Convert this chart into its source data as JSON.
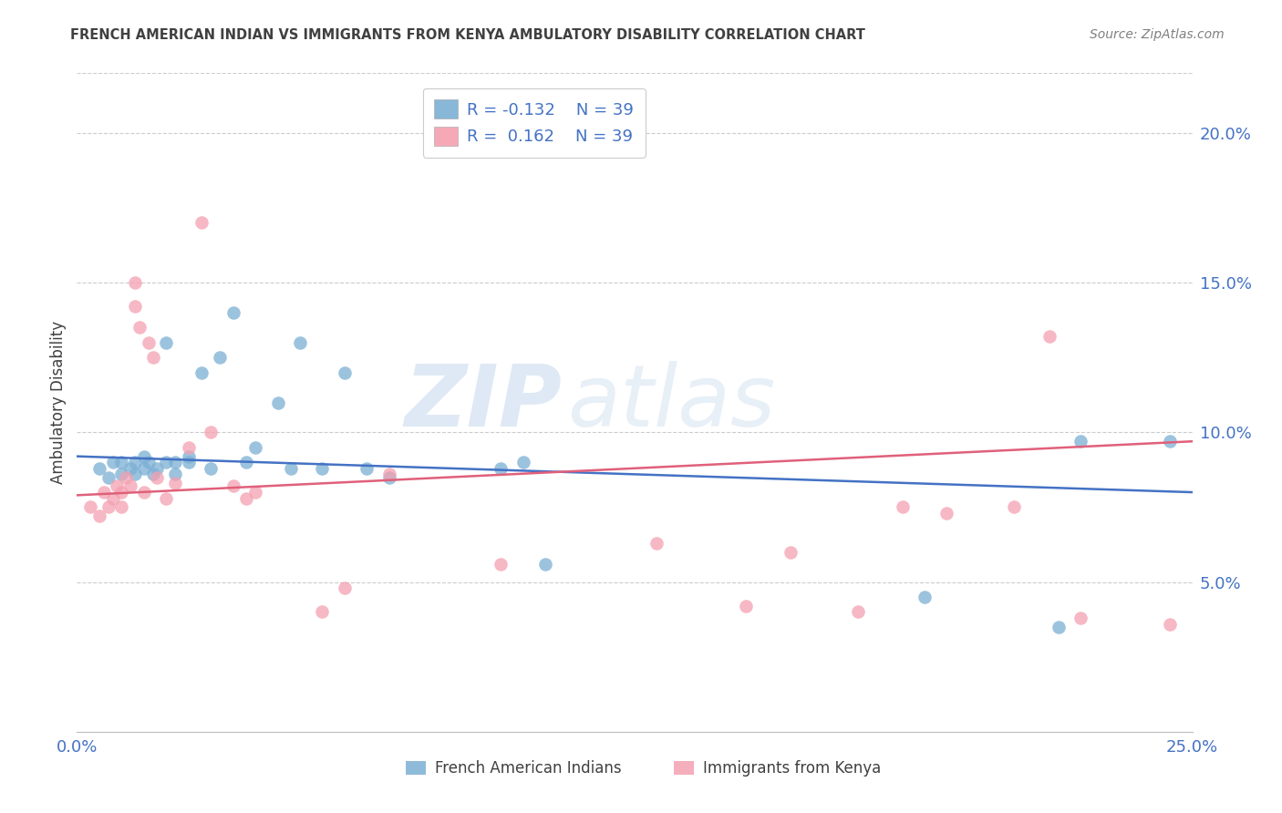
{
  "title": "FRENCH AMERICAN INDIAN VS IMMIGRANTS FROM KENYA AMBULATORY DISABILITY CORRELATION CHART",
  "source": "Source: ZipAtlas.com",
  "ylabel": "Ambulatory Disability",
  "xlim": [
    0.0,
    0.25
  ],
  "ylim": [
    0.0,
    0.22
  ],
  "xticks": [
    0.0,
    0.05,
    0.1,
    0.15,
    0.2,
    0.25
  ],
  "ytick_vals": [
    0.05,
    0.1,
    0.15,
    0.2
  ],
  "ytick_labels_right": [
    "5.0%",
    "10.0%",
    "15.0%",
    "20.0%"
  ],
  "xtick_labels": [
    "0.0%",
    "",
    "",
    "",
    "",
    "25.0%"
  ],
  "watermark_zip": "ZIP",
  "watermark_atlas": "atlas",
  "legend_blue_r": "R = -0.132",
  "legend_blue_n": "N = 39",
  "legend_pink_r": "R =  0.162",
  "legend_pink_n": "N = 39",
  "legend_label_blue": "French American Indians",
  "legend_label_pink": "Immigrants from Kenya",
  "blue_color": "#7BAFD4",
  "pink_color": "#F4A0B0",
  "line_blue_color": "#4472C4",
  "line_pink_color": "#E0607A",
  "axis_label_color": "#4472C4",
  "title_color": "#404040",
  "source_color": "#808080",
  "blue_scatter_x": [
    0.005,
    0.007,
    0.008,
    0.01,
    0.01,
    0.012,
    0.013,
    0.013,
    0.015,
    0.015,
    0.016,
    0.017,
    0.018,
    0.02,
    0.02,
    0.022,
    0.022,
    0.025,
    0.025,
    0.028,
    0.03,
    0.032,
    0.035,
    0.038,
    0.04,
    0.045,
    0.048,
    0.05,
    0.055,
    0.06,
    0.065,
    0.07,
    0.095,
    0.1,
    0.105,
    0.19,
    0.22,
    0.225,
    0.245
  ],
  "blue_scatter_y": [
    0.088,
    0.085,
    0.09,
    0.09,
    0.086,
    0.088,
    0.09,
    0.086,
    0.092,
    0.088,
    0.09,
    0.086,
    0.088,
    0.09,
    0.13,
    0.09,
    0.086,
    0.092,
    0.09,
    0.12,
    0.088,
    0.125,
    0.14,
    0.09,
    0.095,
    0.11,
    0.088,
    0.13,
    0.088,
    0.12,
    0.088,
    0.085,
    0.088,
    0.09,
    0.056,
    0.045,
    0.035,
    0.097,
    0.097
  ],
  "pink_scatter_x": [
    0.003,
    0.005,
    0.006,
    0.007,
    0.008,
    0.009,
    0.01,
    0.01,
    0.011,
    0.012,
    0.013,
    0.013,
    0.014,
    0.015,
    0.016,
    0.017,
    0.018,
    0.02,
    0.022,
    0.025,
    0.028,
    0.03,
    0.035,
    0.038,
    0.04,
    0.055,
    0.06,
    0.07,
    0.095,
    0.13,
    0.15,
    0.16,
    0.175,
    0.185,
    0.195,
    0.21,
    0.218,
    0.225,
    0.245
  ],
  "pink_scatter_y": [
    0.075,
    0.072,
    0.08,
    0.075,
    0.078,
    0.082,
    0.08,
    0.075,
    0.085,
    0.082,
    0.15,
    0.142,
    0.135,
    0.08,
    0.13,
    0.125,
    0.085,
    0.078,
    0.083,
    0.095,
    0.17,
    0.1,
    0.082,
    0.078,
    0.08,
    0.04,
    0.048,
    0.086,
    0.056,
    0.063,
    0.042,
    0.06,
    0.04,
    0.075,
    0.073,
    0.075,
    0.132,
    0.038,
    0.036
  ],
  "blue_line_x0": 0.0,
  "blue_line_x1": 0.25,
  "blue_line_y0": 0.092,
  "blue_line_y1": 0.08,
  "pink_line_x0": 0.0,
  "pink_line_x1": 0.25,
  "pink_line_y0": 0.079,
  "pink_line_y1": 0.097
}
